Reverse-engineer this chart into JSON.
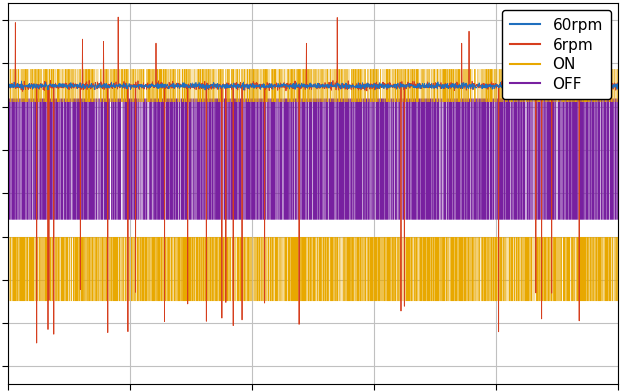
{
  "colors": {
    "60rpm": "#1f6fbe",
    "6rpm": "#d63e1e",
    "ON": "#e8a800",
    "OFF": "#7820a0"
  },
  "legend_labels": [
    "60rpm",
    "6rpm",
    "ON",
    "OFF"
  ],
  "figsize": [
    6.21,
    3.92
  ],
  "dpi": 100,
  "seed": 42,
  "background_color": "#ffffff",
  "grid_color": "#c0c0c0",
  "ylim": [
    -1.1,
    1.1
  ],
  "xlim": [
    0,
    1
  ],
  "n_points": 2000,
  "on_upper_level": 0.72,
  "on_lower_level": -0.62,
  "off_upper_level": 0.55,
  "off_lower_level": -0.15,
  "sixrpm_base": 0.62,
  "sixrpm_lower": -0.55
}
